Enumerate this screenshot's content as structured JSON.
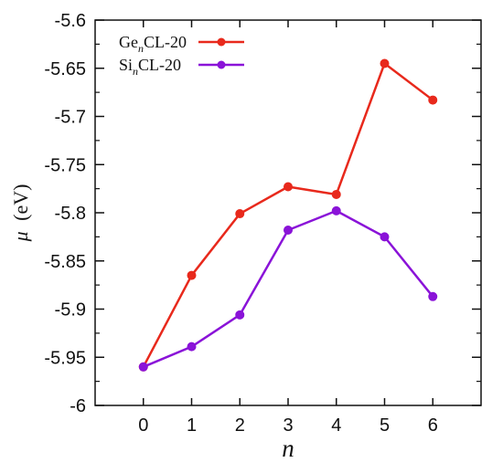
{
  "chart_data": {
    "type": "line",
    "title": "",
    "xlabel": "n",
    "ylabel_symbol": "μ",
    "ylabel_unit": "(eV)",
    "x": [
      0,
      1,
      2,
      3,
      4,
      5,
      6
    ],
    "xlim": [
      -1,
      7
    ],
    "ylim": [
      -6,
      -5.6
    ],
    "xticks": [
      "0",
      "1",
      "2",
      "3",
      "4",
      "5",
      "6"
    ],
    "yticks": [
      "-5.6",
      "-5.65",
      "-5.7",
      "-5.75",
      "-5.8",
      "-5.85",
      "-5.9",
      "-5.95",
      "-6"
    ],
    "ytick_values": [
      -5.6,
      -5.65,
      -5.7,
      -5.75,
      -5.8,
      -5.85,
      -5.9,
      -5.95,
      -6
    ],
    "grid": false,
    "legend_position": "top-left",
    "series": [
      {
        "name": "GenCL-20",
        "legend_base": "Ge",
        "legend_sub": "n",
        "legend_suffix": "CL-20",
        "color": "#e8291c",
        "values": [
          -5.96,
          -5.865,
          -5.801,
          -5.773,
          -5.781,
          -5.645,
          -5.683
        ]
      },
      {
        "name": "SinCL-20",
        "legend_base": "Si",
        "legend_sub": "n",
        "legend_suffix": "CL-20",
        "color": "#8a13d8",
        "values": [
          -5.96,
          -5.939,
          -5.906,
          -5.818,
          -5.798,
          -5.825,
          -5.887
        ]
      }
    ]
  }
}
